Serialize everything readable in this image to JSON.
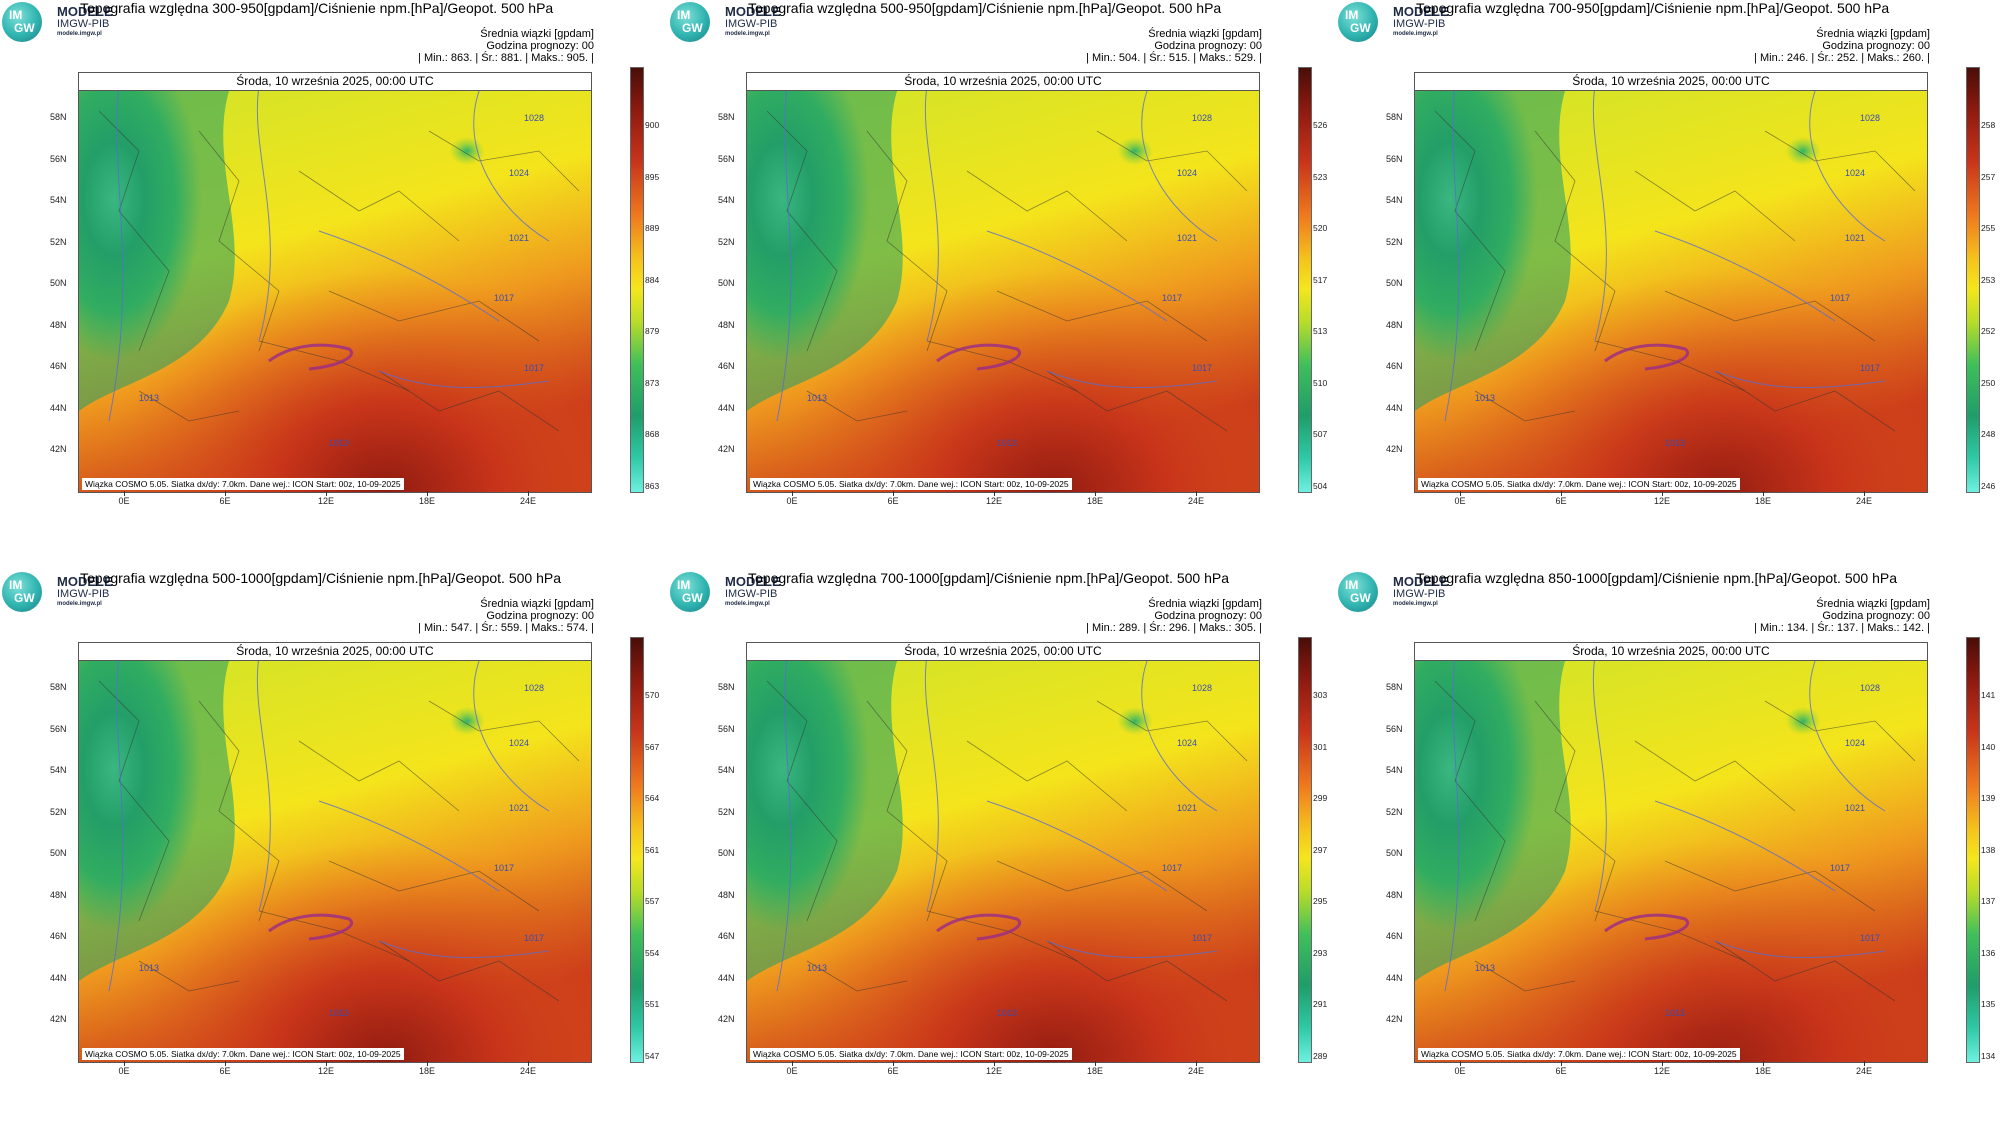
{
  "logo": {
    "line1": "MODELE",
    "line2": "IMGW-PIB",
    "line3": "modele.imgw.pl",
    "im": "IM",
    "gw": "GW"
  },
  "panels": [
    {
      "title": "Topografia względna 300-950[gpdam]/Ciśnienie npm.[hPa]/Geopot. 500 hPa",
      "avg_label": "Średnia wiązki [gpdam]",
      "forecast_hour": "Godzina prognozy: 00",
      "stats": "| Min.:   863. | Śr.:   881. | Maks.:   905. |",
      "date": "Środa, 10 września 2025, 00:00 UTC",
      "footer": "Wiązka  COSMO  5.05.  Siatka  dx/dy:  7.0km.  Dane  wej.:  ICON  Start:  00z,  10-09-2025",
      "scale": [
        "900",
        "895",
        "889",
        "884",
        "879",
        "873",
        "868",
        "863"
      ]
    },
    {
      "title": "Topografia względna 500-950[gpdam]/Ciśnienie npm.[hPa]/Geopot. 500 hPa",
      "avg_label": "Średnia wiązki [gpdam]",
      "forecast_hour": "Godzina prognozy: 00",
      "stats": "| Min.:   504. | Śr.:   515. | Maks.:   529. |",
      "date": "Środa, 10 września 2025, 00:00 UTC",
      "footer": "Wiązka  COSMO  5.05.  Siatka  dx/dy:  7.0km.  Dane  wej.:  ICON  Start:  00z,  10-09-2025",
      "scale": [
        "526",
        "523",
        "520",
        "517",
        "513",
        "510",
        "507",
        "504"
      ]
    },
    {
      "title": "Topografia względna 700-950[gpdam]/Ciśnienie npm.[hPa]/Geopot. 500 hPa",
      "avg_label": "Średnia wiązki [gpdam]",
      "forecast_hour": "Godzina prognozy: 00",
      "stats": "| Min.:   246. | Śr.:   252. | Maks.:   260. |",
      "date": "Środa, 10 września 2025, 00:00 UTC",
      "footer": "Wiązka  COSMO  5.05.  Siatka  dx/dy:  7.0km.  Dane  wej.:  ICON  Start:  00z,  10-09-2025",
      "scale": [
        "258",
        "257",
        "255",
        "253",
        "252",
        "250",
        "248",
        "246"
      ]
    },
    {
      "title": "Topografia względna 500-1000[gpdam]/Ciśnienie npm.[hPa]/Geopot. 500 hPa",
      "avg_label": "Średnia wiązki [gpdam]",
      "forecast_hour": "Godzina prognozy: 00",
      "stats": "| Min.:   547. | Śr.:   559. | Maks.:   574. |",
      "date": "Środa, 10 września 2025, 00:00 UTC",
      "footer": "Wiązka  COSMO  5.05.  Siatka  dx/dy:  7.0km.  Dane  wej.:  ICON  Start:  00z,  10-09-2025",
      "scale": [
        "570",
        "567",
        "564",
        "561",
        "557",
        "554",
        "551",
        "547"
      ]
    },
    {
      "title": "Topografia względna 700-1000[gpdam]/Ciśnienie npm.[hPa]/Geopot. 500 hPa",
      "avg_label": "Średnia wiązki [gpdam]",
      "forecast_hour": "Godzina prognozy: 00",
      "stats": "| Min.:   289. | Śr.:   296. | Maks.:   305. |",
      "date": "Środa, 10 września 2025, 00:00 UTC",
      "footer": "Wiązka  COSMO  5.05.  Siatka  dx/dy:  7.0km.  Dane  wej.:  ICON  Start:  00z,  10-09-2025",
      "scale": [
        "303",
        "301",
        "299",
        "297",
        "295",
        "293",
        "291",
        "289"
      ]
    },
    {
      "title": "Topografia względna 850-1000[gpdam]/Ciśnienie npm.[hPa]/Geopot. 500 hPa",
      "avg_label": "Średnia wiązki [gpdam]",
      "forecast_hour": "Godzina prognozy: 00",
      "stats": "| Min.:   134. | Śr.:   137. | Maks.:   142. |",
      "date": "Środa, 10 września 2025, 00:00 UTC",
      "footer": "Wiązka  COSMO  5.05.  Siatka  dx/dy:  7.0km.  Dane  wej.:  ICON  Start:  00z,  10-09-2025",
      "scale": [
        "141",
        "140",
        "139",
        "138",
        "137",
        "136",
        "135",
        "134"
      ]
    }
  ],
  "lat_labels": [
    "58N",
    "56N",
    "54N",
    "52N",
    "50N",
    "48N",
    "46N",
    "44N",
    "42N"
  ],
  "lon_labels": [
    "0E",
    "6E",
    "12E",
    "18E",
    "24E"
  ],
  "isobars": [
    "1028",
    "1024",
    "1021",
    "1017",
    "1013",
    "1017",
    "1013"
  ],
  "colors": {
    "green_dark": "#1f9d6a",
    "green": "#3fbf5a",
    "yellow": "#f5e61d",
    "orange": "#ef9a1e",
    "red": "#d2401a",
    "dark_red": "#8e1a10",
    "isobar": "#5a6dd0"
  }
}
